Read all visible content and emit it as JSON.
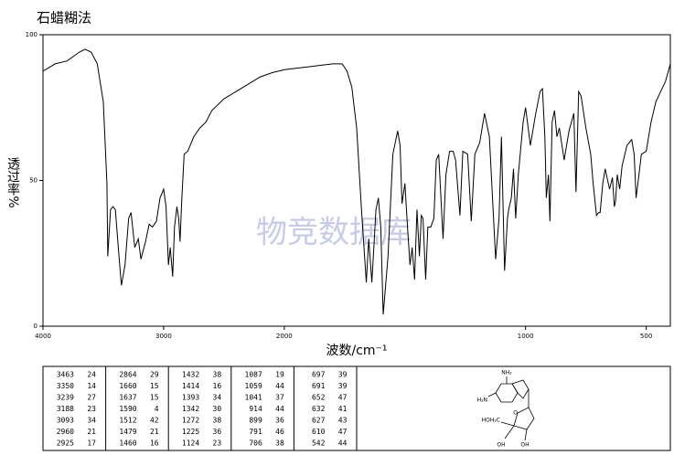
{
  "chart_data": {
    "type": "line",
    "title": "石蜡糊法",
    "xlabel": "波数/cm⁻¹",
    "ylabel": "透过率%",
    "watermark": "物竞数据库",
    "color": "#000000",
    "xlim": [
      4000,
      400
    ],
    "xticks": [
      4000,
      3000,
      2000,
      1000,
      500
    ],
    "x_expansion": {
      "below": 2000,
      "factor": 2
    },
    "ylim": [
      0,
      100
    ],
    "yticks": [
      0,
      50,
      100
    ],
    "x": [
      4000,
      3900,
      3800,
      3700,
      3650,
      3600,
      3550,
      3500,
      3470,
      3463,
      3440,
      3420,
      3400,
      3370,
      3350,
      3320,
      3290,
      3270,
      3239,
      3210,
      3188,
      3150,
      3120,
      3093,
      3060,
      3030,
      3000,
      2980,
      2960,
      2945,
      2925,
      2910,
      2890,
      2875,
      2864,
      2850,
      2830,
      2800,
      2750,
      2700,
      2650,
      2600,
      2500,
      2400,
      2300,
      2200,
      2100,
      2000,
      1900,
      1800,
      1760,
      1740,
      1720,
      1700,
      1680,
      1660,
      1650,
      1637,
      1620,
      1610,
      1600,
      1590,
      1570,
      1550,
      1530,
      1520,
      1512,
      1500,
      1490,
      1479,
      1470,
      1460,
      1450,
      1440,
      1432,
      1425,
      1414,
      1405,
      1393,
      1380,
      1370,
      1360,
      1342,
      1330,
      1315,
      1300,
      1290,
      1272,
      1260,
      1240,
      1225,
      1210,
      1190,
      1170,
      1150,
      1124,
      1110,
      1100,
      1087,
      1075,
      1070,
      1059,
      1050,
      1041,
      1030,
      1010,
      1000,
      980,
      960,
      940,
      930,
      920,
      914,
      905,
      899,
      890,
      880,
      870,
      860,
      840,
      820,
      800,
      791,
      780,
      770,
      750,
      730,
      720,
      706,
      697,
      691,
      680,
      670,
      652,
      640,
      632,
      627,
      620,
      610,
      600,
      580,
      560,
      550,
      542,
      530,
      520,
      500,
      480,
      460,
      440,
      420,
      400
    ],
    "values": [
      87.5,
      90,
      91,
      94,
      95,
      94,
      90,
      77,
      49,
      24,
      40,
      41,
      40,
      24,
      14,
      21,
      37,
      39,
      27,
      30,
      23,
      29,
      35,
      34,
      36,
      44,
      47,
      41,
      21,
      27,
      17,
      34,
      41,
      37,
      29,
      43,
      59,
      60,
      65,
      68,
      70,
      74,
      78,
      80.5,
      83,
      85.5,
      87,
      88,
      89,
      90,
      90,
      87.5,
      82,
      68,
      40,
      15,
      30,
      15,
      40,
      44,
      34,
      4,
      24,
      59,
      67,
      62,
      42,
      49,
      35,
      21,
      27,
      16,
      40,
      24,
      38,
      37,
      16,
      34,
      34,
      37,
      57,
      59,
      30,
      52,
      60,
      60,
      57,
      38,
      60,
      59,
      36,
      59,
      63,
      73,
      65,
      23,
      37,
      65,
      19,
      37,
      40,
      44,
      54,
      37,
      52,
      70,
      75,
      62,
      72,
      80.5,
      81.5,
      65,
      44,
      52,
      36,
      70,
      74,
      65,
      68,
      57,
      67,
      73,
      46,
      80.5,
      79,
      68,
      59,
      49,
      38,
      39,
      39,
      49,
      54,
      47,
      51,
      41,
      43,
      52,
      47,
      55,
      62,
      64,
      59,
      44,
      52,
      59,
      60,
      70,
      77,
      80.5,
      84,
      90
    ],
    "peak_table": [
      [
        3463,
        24
      ],
      [
        3350,
        14
      ],
      [
        3239,
        27
      ],
      [
        3188,
        23
      ],
      [
        3093,
        34
      ],
      [
        2960,
        21
      ],
      [
        2925,
        17
      ],
      [
        2864,
        29
      ],
      [
        1660,
        15
      ],
      [
        1637,
        15
      ],
      [
        1590,
        4
      ],
      [
        1512,
        42
      ],
      [
        1479,
        21
      ],
      [
        1460,
        16
      ],
      [
        1432,
        38
      ],
      [
        1414,
        16
      ],
      [
        1393,
        34
      ],
      [
        1342,
        30
      ],
      [
        1272,
        38
      ],
      [
        1225,
        36
      ],
      [
        1124,
        23
      ],
      [
        1087,
        19
      ],
      [
        1059,
        44
      ],
      [
        1041,
        37
      ],
      [
        914,
        44
      ],
      [
        899,
        36
      ],
      [
        791,
        46
      ],
      [
        706,
        38
      ],
      [
        697,
        39
      ],
      [
        691,
        39
      ],
      [
        652,
        47
      ],
      [
        632,
        41
      ],
      [
        627,
        43
      ],
      [
        610,
        47
      ],
      [
        542,
        44
      ]
    ],
    "structure_labels": [
      "NH₂",
      "H₂N",
      "HOH₂C",
      "O",
      "OH",
      "OH"
    ]
  }
}
